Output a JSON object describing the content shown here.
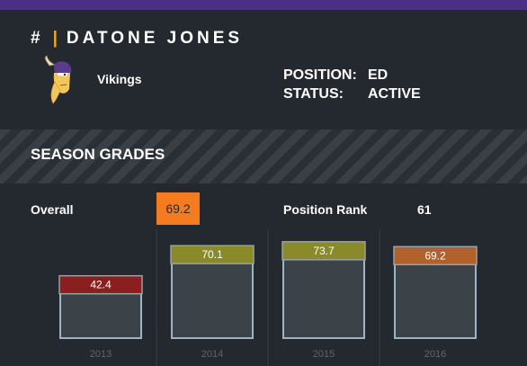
{
  "header": {
    "hash": "#",
    "separator": "|",
    "player_name": "DATONE JONES"
  },
  "team": {
    "name": "Vikings",
    "logo_icon": "vikings-logo-icon"
  },
  "info": {
    "position_label": "POSITION:",
    "position_value": "ED",
    "status_label": "STATUS:",
    "status_value": "ACTIVE"
  },
  "section_title": "SEASON GRADES",
  "summary": {
    "overall_label": "Overall",
    "overall_value": "69.2",
    "position_rank_label": "Position Rank",
    "position_rank_value": "61"
  },
  "colors": {
    "accent_top": "#4a2f86",
    "overall_badge": "#f47b20",
    "grade_low": "#8b1f1f",
    "grade_mid": "#8a8a2a",
    "grade_avg": "#b3612a"
  },
  "chart_data": {
    "type": "bar",
    "categories": [
      "2013",
      "2014",
      "2015",
      "2016"
    ],
    "values": [
      42.4,
      70.1,
      73.7,
      69.2
    ],
    "label_colors": [
      "#8b1f1f",
      "#8a8a2a",
      "#8a8a2a",
      "#b3612a"
    ],
    "ylim": [
      0,
      100
    ]
  }
}
